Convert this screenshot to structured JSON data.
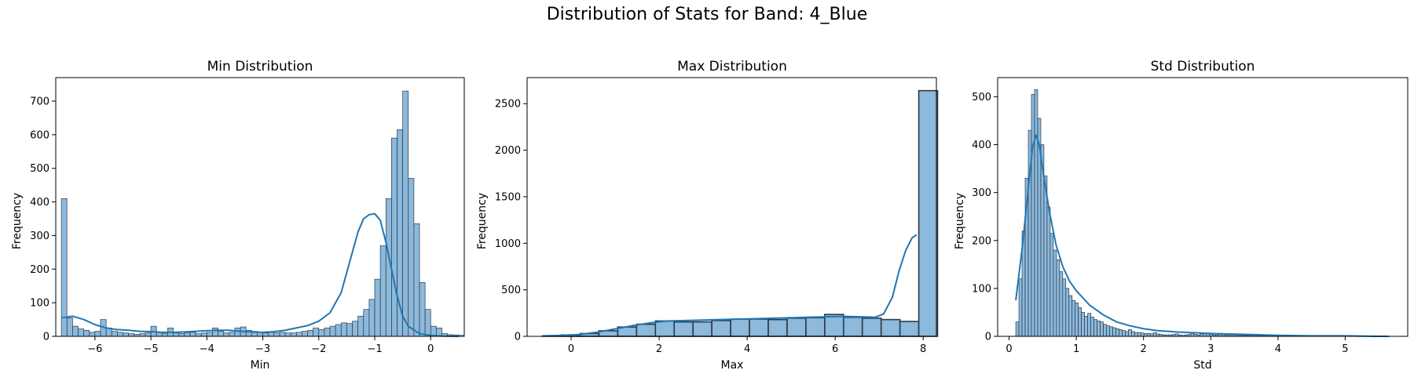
{
  "figure": {
    "title": "Distribution of Stats for Band: 4_Blue"
  },
  "colors": {
    "bar_fill": "#7fb1d8",
    "bar_edge": "#2b3a48",
    "kde": "#1f77b4"
  },
  "chart_data": [
    {
      "type": "bar",
      "histogram": true,
      "title": "Min Distribution",
      "xlabel": "Min",
      "ylabel": "Frequency",
      "xlim": [
        -6.7,
        0.6
      ],
      "ylim": [
        0,
        770
      ],
      "xticks": [
        -6,
        -5,
        -4,
        -3,
        -2,
        -1,
        0
      ],
      "yticks": [
        0,
        100,
        200,
        300,
        400,
        500,
        600,
        700
      ],
      "bin_start": -6.6,
      "bin_width": 0.1,
      "values": [
        410,
        55,
        30,
        22,
        18,
        12,
        15,
        50,
        25,
        15,
        12,
        10,
        8,
        6,
        8,
        10,
        30,
        12,
        8,
        25,
        10,
        8,
        10,
        12,
        8,
        10,
        12,
        25,
        15,
        10,
        12,
        25,
        28,
        18,
        15,
        12,
        10,
        12,
        10,
        12,
        10,
        10,
        12,
        15,
        18,
        25,
        20,
        25,
        30,
        35,
        40,
        38,
        45,
        60,
        80,
        110,
        170,
        270,
        410,
        590,
        615,
        730,
        470,
        335,
        160,
        80,
        30,
        25,
        8,
        5,
        4,
        3
      ],
      "kde": {
        "x": [
          -6.6,
          -6.4,
          -6.2,
          -6.0,
          -5.8,
          -5.6,
          -5.4,
          -5.2,
          -5.0,
          -4.8,
          -4.6,
          -4.4,
          -4.2,
          -4.0,
          -3.8,
          -3.6,
          -3.4,
          -3.2,
          -3.0,
          -2.8,
          -2.6,
          -2.4,
          -2.2,
          -2.0,
          -1.8,
          -1.6,
          -1.4,
          -1.3,
          -1.2,
          -1.1,
          -1.0,
          -0.9,
          -0.8,
          -0.7,
          -0.6,
          -0.5,
          -0.4,
          -0.2,
          0.0,
          0.2,
          0.5
        ],
        "y": [
          55,
          60,
          50,
          35,
          25,
          20,
          18,
          15,
          14,
          12,
          12,
          13,
          15,
          17,
          18,
          18,
          15,
          13,
          12,
          14,
          18,
          25,
          32,
          45,
          70,
          130,
          250,
          310,
          350,
          362,
          365,
          345,
          280,
          200,
          120,
          60,
          30,
          8,
          3,
          1,
          0
        ]
      }
    },
    {
      "type": "bar",
      "histogram": true,
      "title": "Max Distribution",
      "xlabel": "Max",
      "ylabel": "Frequency",
      "xlim": [
        -1.0,
        8.3
      ],
      "ylim": [
        0,
        2780
      ],
      "xticks": [
        0,
        2,
        4,
        6,
        8
      ],
      "yticks": [
        0,
        500,
        1000,
        1500,
        2000,
        2500
      ],
      "bin_start": -0.65,
      "bin_width": 0.4275,
      "values": [
        5,
        15,
        30,
        60,
        100,
        130,
        165,
        155,
        155,
        170,
        185,
        185,
        180,
        195,
        200,
        235,
        205,
        195,
        180,
        160,
        2640
      ],
      "kde": {
        "x": [
          -0.65,
          -0.2,
          0.2,
          0.6,
          1.0,
          1.4,
          1.8,
          2.2,
          2.6,
          3.0,
          3.4,
          3.8,
          4.2,
          4.6,
          5.0,
          5.4,
          5.8,
          6.2,
          6.6,
          6.9,
          7.1,
          7.3,
          7.45,
          7.6,
          7.75,
          7.85
        ],
        "y": [
          5,
          10,
          20,
          45,
          80,
          115,
          145,
          165,
          170,
          175,
          180,
          185,
          190,
          195,
          200,
          205,
          210,
          215,
          210,
          205,
          240,
          420,
          700,
          920,
          1060,
          1090
        ]
      }
    },
    {
      "type": "bar",
      "histogram": true,
      "title": "Std Distribution",
      "xlabel": "Std",
      "ylabel": "Frequency",
      "xlim": [
        -0.17,
        5.93
      ],
      "ylim": [
        0,
        540
      ],
      "xticks": [
        0,
        1,
        2,
        3,
        4,
        5
      ],
      "yticks": [
        0,
        100,
        200,
        300,
        400,
        500
      ],
      "bin_start": 0.1,
      "bin_width": 0.0465,
      "values": [
        30,
        120,
        220,
        330,
        430,
        505,
        515,
        455,
        400,
        335,
        270,
        215,
        180,
        160,
        135,
        120,
        100,
        85,
        75,
        70,
        60,
        50,
        42,
        48,
        40,
        35,
        32,
        30,
        25,
        22,
        20,
        18,
        16,
        14,
        12,
        10,
        14,
        10,
        8,
        8,
        7,
        6,
        6,
        5,
        8,
        5,
        4,
        3,
        3,
        3,
        4,
        5,
        3,
        2,
        3,
        4,
        6,
        4,
        3,
        5,
        6,
        7,
        4,
        3,
        3,
        4,
        2,
        3,
        2,
        2,
        2,
        2,
        2,
        2,
        2,
        2,
        2,
        2,
        1,
        1,
        1,
        1,
        1,
        1,
        1,
        1,
        1,
        1,
        1,
        1,
        1,
        1,
        1,
        1,
        1,
        1,
        1,
        1,
        1,
        1,
        1,
        1,
        1,
        1,
        1,
        1,
        1,
        1,
        1,
        1,
        1,
        1,
        1,
        1,
        1,
        1,
        1,
        1,
        1
      ],
      "kde": {
        "x": [
          0.1,
          0.2,
          0.3,
          0.35,
          0.4,
          0.45,
          0.5,
          0.6,
          0.7,
          0.8,
          0.9,
          1.0,
          1.2,
          1.4,
          1.6,
          1.8,
          2.0,
          2.2,
          2.5,
          3.0,
          3.5,
          4.0,
          4.5,
          5.0,
          5.5,
          5.65
        ],
        "y": [
          75,
          190,
          330,
          395,
          420,
          400,
          350,
          260,
          190,
          145,
          115,
          95,
          65,
          45,
          30,
          22,
          16,
          12,
          9,
          6,
          4,
          2,
          1,
          1,
          0,
          0
        ]
      }
    }
  ]
}
